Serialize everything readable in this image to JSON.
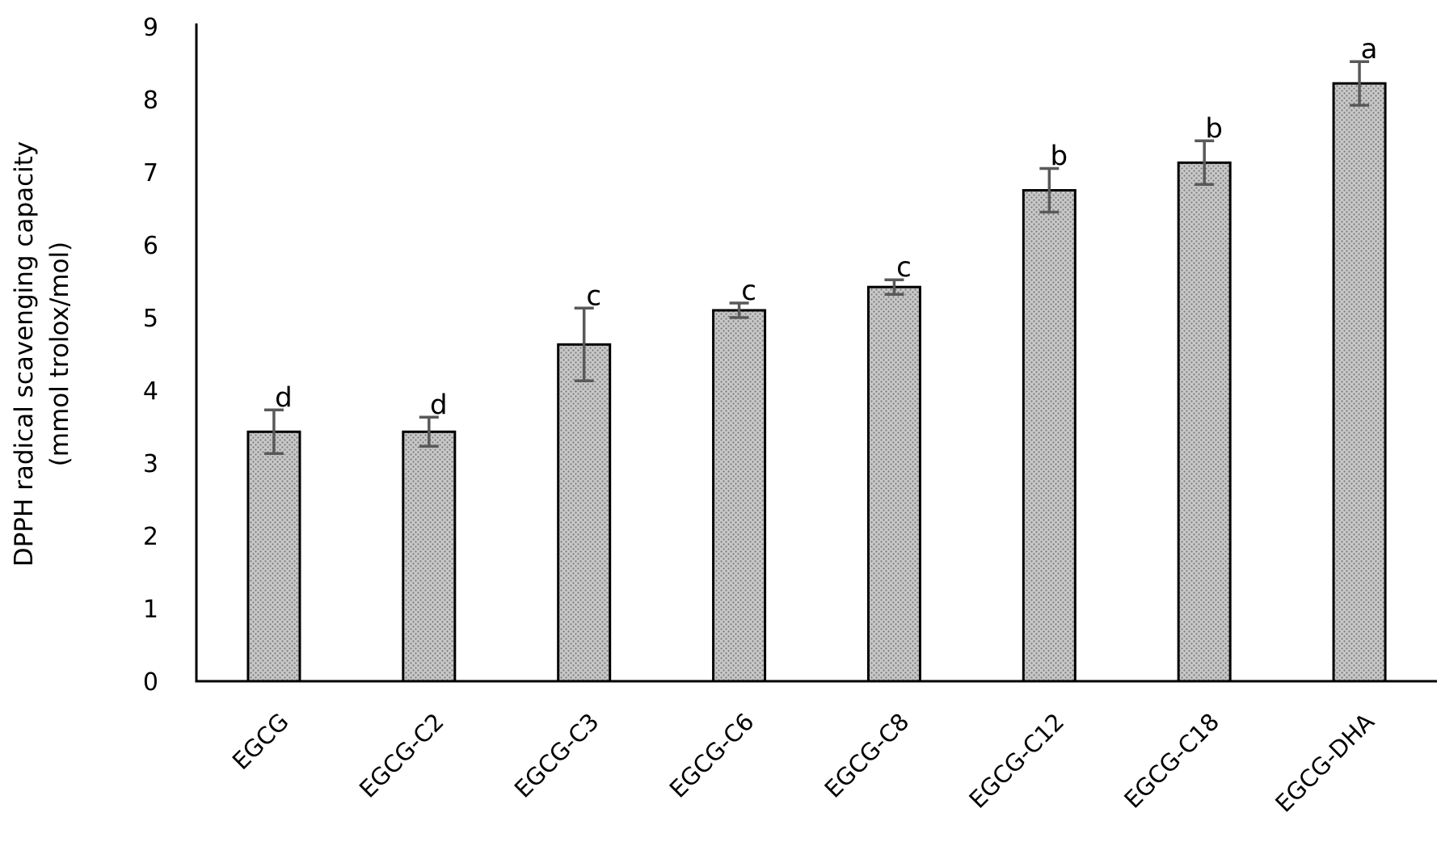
{
  "chart_data": {
    "type": "bar",
    "title": "",
    "xlabel": "",
    "ylabel_lines": [
      "DPPH radical scavenging capacity",
      "(mmol trolox/mol)"
    ],
    "ylim": [
      0,
      9
    ],
    "yticks": [
      0,
      1,
      2,
      3,
      4,
      5,
      6,
      7,
      8,
      9
    ],
    "categories": [
      "EGCG",
      "EGCG-C2",
      "EGCG-C3",
      "EGCG-C6",
      "EGCG-C8",
      "EGCG-C12",
      "EGCG-C18",
      "EGCG-DHA"
    ],
    "values": [
      3.43,
      3.43,
      4.63,
      5.1,
      5.42,
      6.75,
      7.13,
      8.22
    ],
    "errors": [
      0.3,
      0.2,
      0.5,
      0.1,
      0.1,
      0.3,
      0.3,
      0.3
    ],
    "significance_labels": [
      "d",
      "d",
      "c",
      "c",
      "c",
      "b",
      "b",
      "a"
    ],
    "grid": false,
    "legend": "none",
    "colors": {
      "bar_fill": "#c8c8c8",
      "bar_pattern_dot": "#7a7a7a",
      "bar_stroke": "#000000",
      "error_bar": "#595959",
      "axis": "#000000"
    }
  }
}
